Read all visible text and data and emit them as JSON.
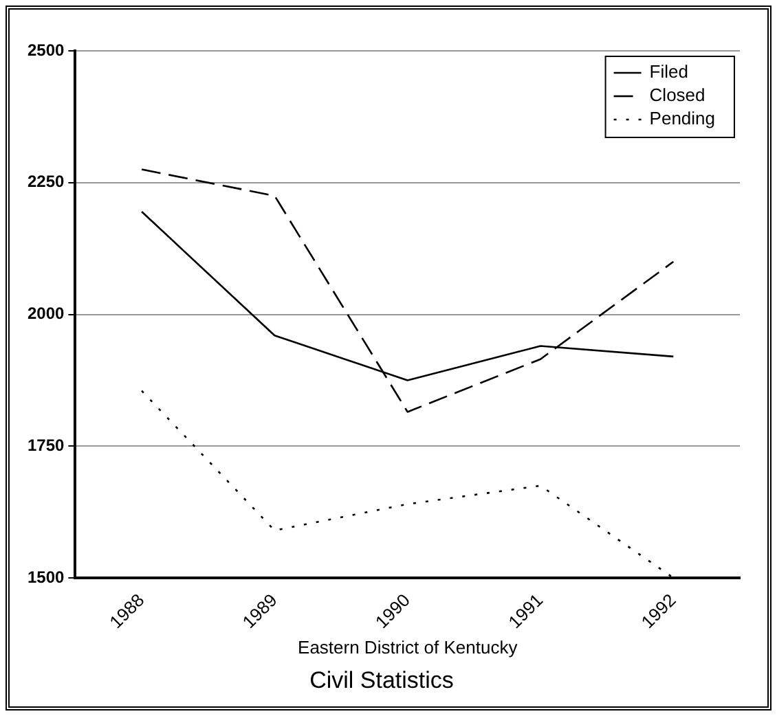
{
  "chart_data": {
    "type": "line",
    "title": "Civil Statistics",
    "xlabel": "Eastern District of Kentucky",
    "categories": [
      "1988",
      "1989",
      "1990",
      "1991",
      "1992"
    ],
    "series": [
      {
        "name": "Filed",
        "color": "#000000",
        "line_style": "solid",
        "values": [
          2195,
          1960,
          1875,
          1940,
          1920
        ]
      },
      {
        "name": "Closed",
        "color": "#000000",
        "line_style": "dashed",
        "values": [
          2275,
          2225,
          1815,
          1915,
          2100
        ]
      },
      {
        "name": "Pending",
        "color": "#000000",
        "line_style": "dotted",
        "values": [
          1855,
          1590,
          1640,
          1675,
          1500
        ]
      }
    ],
    "ylim": [
      1500,
      2500
    ],
    "yticks": [
      1500,
      1750,
      2000,
      2250,
      2500
    ],
    "grid": "y",
    "legend": "top right",
    "marker": "none"
  }
}
